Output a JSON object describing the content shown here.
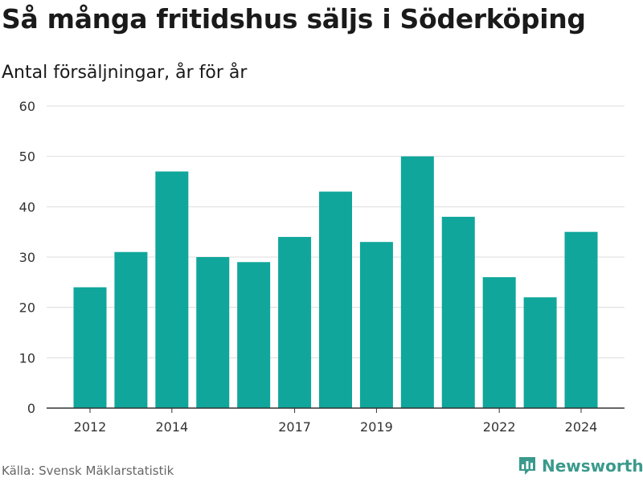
{
  "header": {
    "title": "Så många fritidshus säljs i Söderköping",
    "subtitle": "Antal försäljningar, år för år"
  },
  "footer": {
    "source": "Källa: Svensk Mäklarstatistik",
    "brand": "Newsworthy",
    "brand_icon": "bar-chart-logo-icon"
  },
  "colors": {
    "bar": "#10a69b",
    "grid": "#dddddd",
    "axis": "#333333",
    "brand": "#3a9a8c"
  },
  "chart_data": {
    "type": "bar",
    "title": "Så många fritidshus säljs i Söderköping",
    "subtitle": "Antal försäljningar, år för år",
    "categories": [
      2012,
      2013,
      2014,
      2015,
      2016,
      2017,
      2018,
      2019,
      2020,
      2021,
      2022,
      2023,
      2024
    ],
    "values": [
      24,
      31,
      47,
      30,
      29,
      34,
      43,
      33,
      50,
      38,
      26,
      22,
      35
    ],
    "x_tick_labels": [
      "2012",
      "2014",
      "2017",
      "2019",
      "2022",
      "2024"
    ],
    "y_ticks": [
      0,
      10,
      20,
      30,
      40,
      50,
      60
    ],
    "ylim": [
      0,
      60
    ],
    "xlabel": "",
    "ylabel": "",
    "grid": true,
    "legend": "none"
  }
}
